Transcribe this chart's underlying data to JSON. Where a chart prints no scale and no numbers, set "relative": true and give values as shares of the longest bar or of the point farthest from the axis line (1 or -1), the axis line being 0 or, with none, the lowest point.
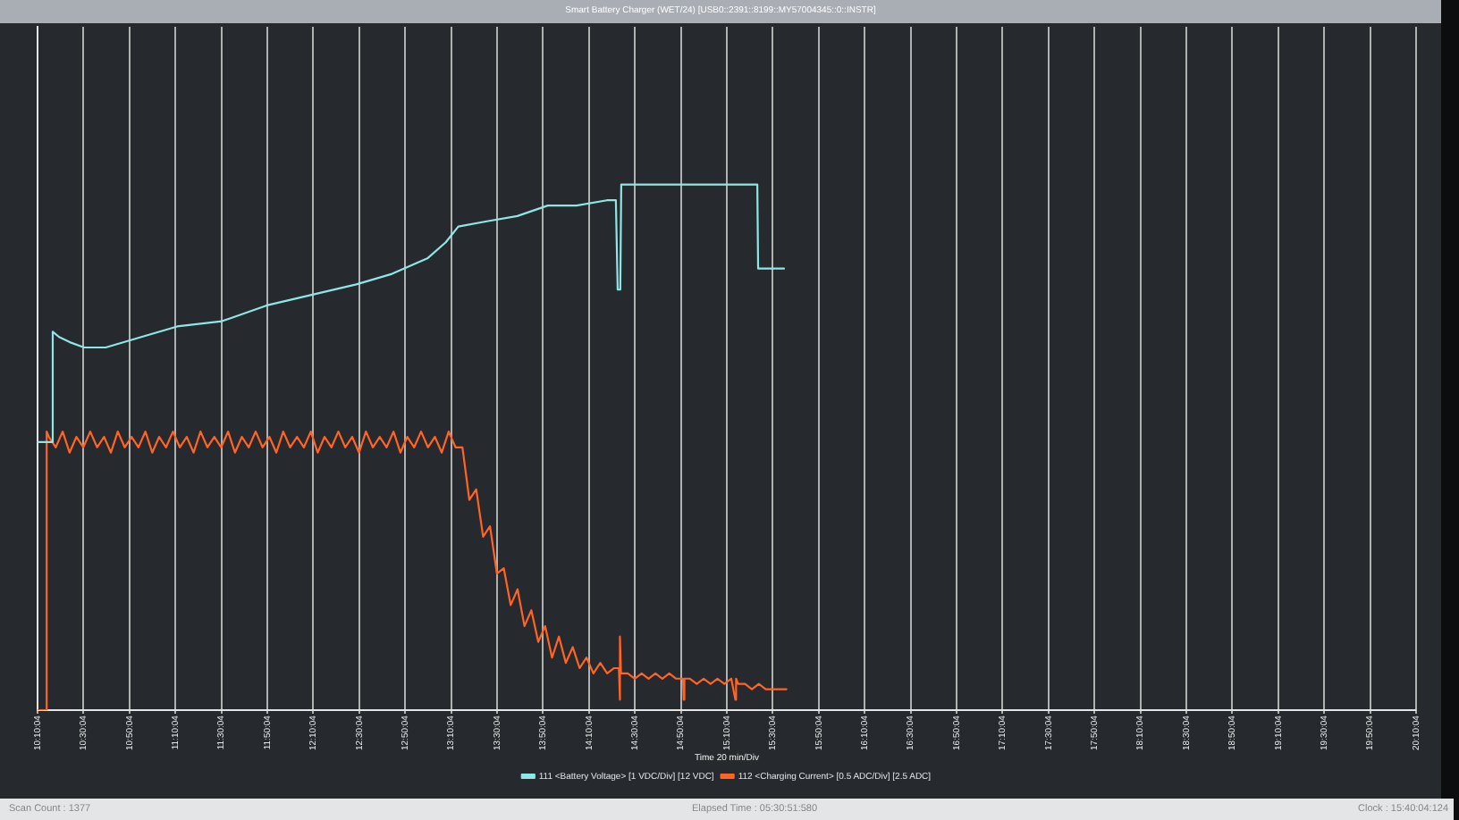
{
  "chart_data": {
    "type": "line",
    "title": "Smart Battery Charger (WET/24) [USB0::2391::8199::MY57004345::0::INSTR]",
    "xlabel": "Time 20 min/Div",
    "relative": true,
    "grid": "x",
    "legend": "bottom",
    "marker": "none",
    "xlim": [
      10.1678,
      20.1678
    ],
    "xticks": [
      {
        "value": 10.1678,
        "label": "10:10:04"
      },
      {
        "value": 10.5011,
        "label": "10:30:04"
      },
      {
        "value": 10.8344,
        "label": "10:50:04"
      },
      {
        "value": 11.1678,
        "label": "11:10:04"
      },
      {
        "value": 11.5011,
        "label": "11:30:04"
      },
      {
        "value": 11.8344,
        "label": "11:50:04"
      },
      {
        "value": 12.1678,
        "label": "12:10:04"
      },
      {
        "value": 12.5011,
        "label": "12:30:04"
      },
      {
        "value": 12.8344,
        "label": "12:50:04"
      },
      {
        "value": 13.1678,
        "label": "13:10:04"
      },
      {
        "value": 13.5011,
        "label": "13:30:04"
      },
      {
        "value": 13.8344,
        "label": "13:50:04"
      },
      {
        "value": 14.1678,
        "label": "14:10:04"
      },
      {
        "value": 14.5011,
        "label": "14:30:04"
      },
      {
        "value": 14.8344,
        "label": "14:50:04"
      },
      {
        "value": 15.1678,
        "label": "15:10:04"
      },
      {
        "value": 15.5011,
        "label": "15:30:04"
      },
      {
        "value": 15.8344,
        "label": "15:50:04"
      },
      {
        "value": 16.1678,
        "label": "16:10:04"
      },
      {
        "value": 16.5011,
        "label": "16:30:04"
      },
      {
        "value": 16.8344,
        "label": "16:50:04"
      },
      {
        "value": 17.1678,
        "label": "17:10:04"
      },
      {
        "value": 17.5011,
        "label": "17:30:04"
      },
      {
        "value": 17.8344,
        "label": "17:50:04"
      },
      {
        "value": 18.1678,
        "label": "18:10:04"
      },
      {
        "value": 18.5011,
        "label": "18:30:04"
      },
      {
        "value": 18.8344,
        "label": "18:50:04"
      },
      {
        "value": 19.1678,
        "label": "19:10:04"
      },
      {
        "value": 19.5011,
        "label": "19:30:04"
      },
      {
        "value": 19.8344,
        "label": "19:50:04"
      },
      {
        "value": 20.1678,
        "label": "20:10:04"
      }
    ],
    "series": [
      {
        "name": "111 <Battery Voltage> [1 VDC/Div] [12 VDC]",
        "color": "#8ee6e6",
        "x": [
          10.168,
          10.272,
          10.278,
          10.324,
          10.402,
          10.506,
          10.662,
          10.921,
          11.181,
          11.506,
          11.83,
          12.155,
          12.48,
          12.739,
          12.999,
          13.129,
          13.22,
          13.427,
          13.648,
          13.869,
          14.077,
          14.298,
          14.363,
          14.376,
          14.395,
          14.402,
          14.817,
          15.077,
          15.389,
          15.395,
          15.583
        ],
        "values": [
          0.51,
          0.51,
          0.72,
          0.71,
          0.7,
          0.69,
          0.69,
          0.71,
          0.73,
          0.74,
          0.77,
          0.79,
          0.81,
          0.83,
          0.86,
          0.89,
          0.92,
          0.93,
          0.94,
          0.96,
          0.96,
          0.97,
          0.97,
          0.8,
          0.8,
          1,
          1,
          1,
          1,
          0.84,
          0.84
        ]
      },
      {
        "name": "112 <Charging Current> [0.5 ADC/Div] [2.5 ADC]",
        "color": "#ff6424",
        "x": [
          10.168,
          10.233,
          10.234,
          10.25,
          10.3,
          10.35,
          10.4,
          10.45,
          10.5,
          10.55,
          10.6,
          10.65,
          10.7,
          10.75,
          10.8,
          10.85,
          10.9,
          10.95,
          11,
          11.05,
          11.1,
          11.15,
          11.2,
          11.25,
          11.3,
          11.35,
          11.4,
          11.45,
          11.5,
          11.55,
          11.6,
          11.65,
          11.7,
          11.75,
          11.8,
          11.85,
          11.9,
          11.95,
          12,
          12.05,
          12.1,
          12.15,
          12.2,
          12.25,
          12.3,
          12.35,
          12.4,
          12.45,
          12.5,
          12.55,
          12.6,
          12.65,
          12.7,
          12.75,
          12.8,
          12.85,
          12.9,
          12.95,
          13,
          13.05,
          13.1,
          13.15,
          13.2,
          13.25,
          13.3,
          13.35,
          13.4,
          13.45,
          13.5,
          13.55,
          13.6,
          13.65,
          13.7,
          13.75,
          13.8,
          13.85,
          13.9,
          13.95,
          14,
          14.05,
          14.1,
          14.15,
          14.2,
          14.25,
          14.3,
          14.35,
          14.385,
          14.39,
          14.395,
          14.4,
          14.45,
          14.5,
          14.55,
          14.6,
          14.65,
          14.7,
          14.75,
          14.8,
          14.85,
          14.855,
          14.86,
          14.9,
          14.95,
          15,
          15.05,
          15.1,
          15.15,
          15.2,
          15.23,
          15.235,
          15.25,
          15.3,
          15.35,
          15.4,
          15.45,
          15.5,
          15.55,
          15.6
        ],
        "values": [
          0,
          0,
          0.53,
          0.52,
          0.5,
          0.53,
          0.49,
          0.52,
          0.5,
          0.53,
          0.5,
          0.52,
          0.49,
          0.53,
          0.5,
          0.52,
          0.5,
          0.53,
          0.49,
          0.52,
          0.5,
          0.53,
          0.5,
          0.52,
          0.49,
          0.53,
          0.5,
          0.52,
          0.5,
          0.53,
          0.49,
          0.52,
          0.5,
          0.53,
          0.5,
          0.52,
          0.49,
          0.53,
          0.5,
          0.52,
          0.5,
          0.53,
          0.49,
          0.52,
          0.5,
          0.53,
          0.5,
          0.52,
          0.49,
          0.53,
          0.5,
          0.52,
          0.5,
          0.53,
          0.49,
          0.52,
          0.5,
          0.53,
          0.5,
          0.52,
          0.49,
          0.53,
          0.5,
          0.5,
          0.4,
          0.42,
          0.33,
          0.35,
          0.26,
          0.27,
          0.2,
          0.23,
          0.16,
          0.19,
          0.13,
          0.16,
          0.1,
          0.14,
          0.09,
          0.12,
          0.08,
          0.1,
          0.07,
          0.09,
          0.07,
          0.08,
          0.08,
          0.02,
          0.14,
          0.07,
          0.07,
          0.06,
          0.07,
          0.06,
          0.07,
          0.06,
          0.07,
          0.06,
          0.06,
          0.02,
          0.06,
          0.06,
          0.05,
          0.06,
          0.05,
          0.06,
          0.05,
          0.06,
          0.02,
          0.06,
          0.05,
          0.05,
          0.04,
          0.05,
          0.04,
          0.04,
          0.04,
          0.04
        ]
      }
    ],
    "annotations": [
      "Scan Count : 1377",
      "Elapsed Time : 05:30:51:580",
      "Clock : 15:40:04:124"
    ]
  }
}
